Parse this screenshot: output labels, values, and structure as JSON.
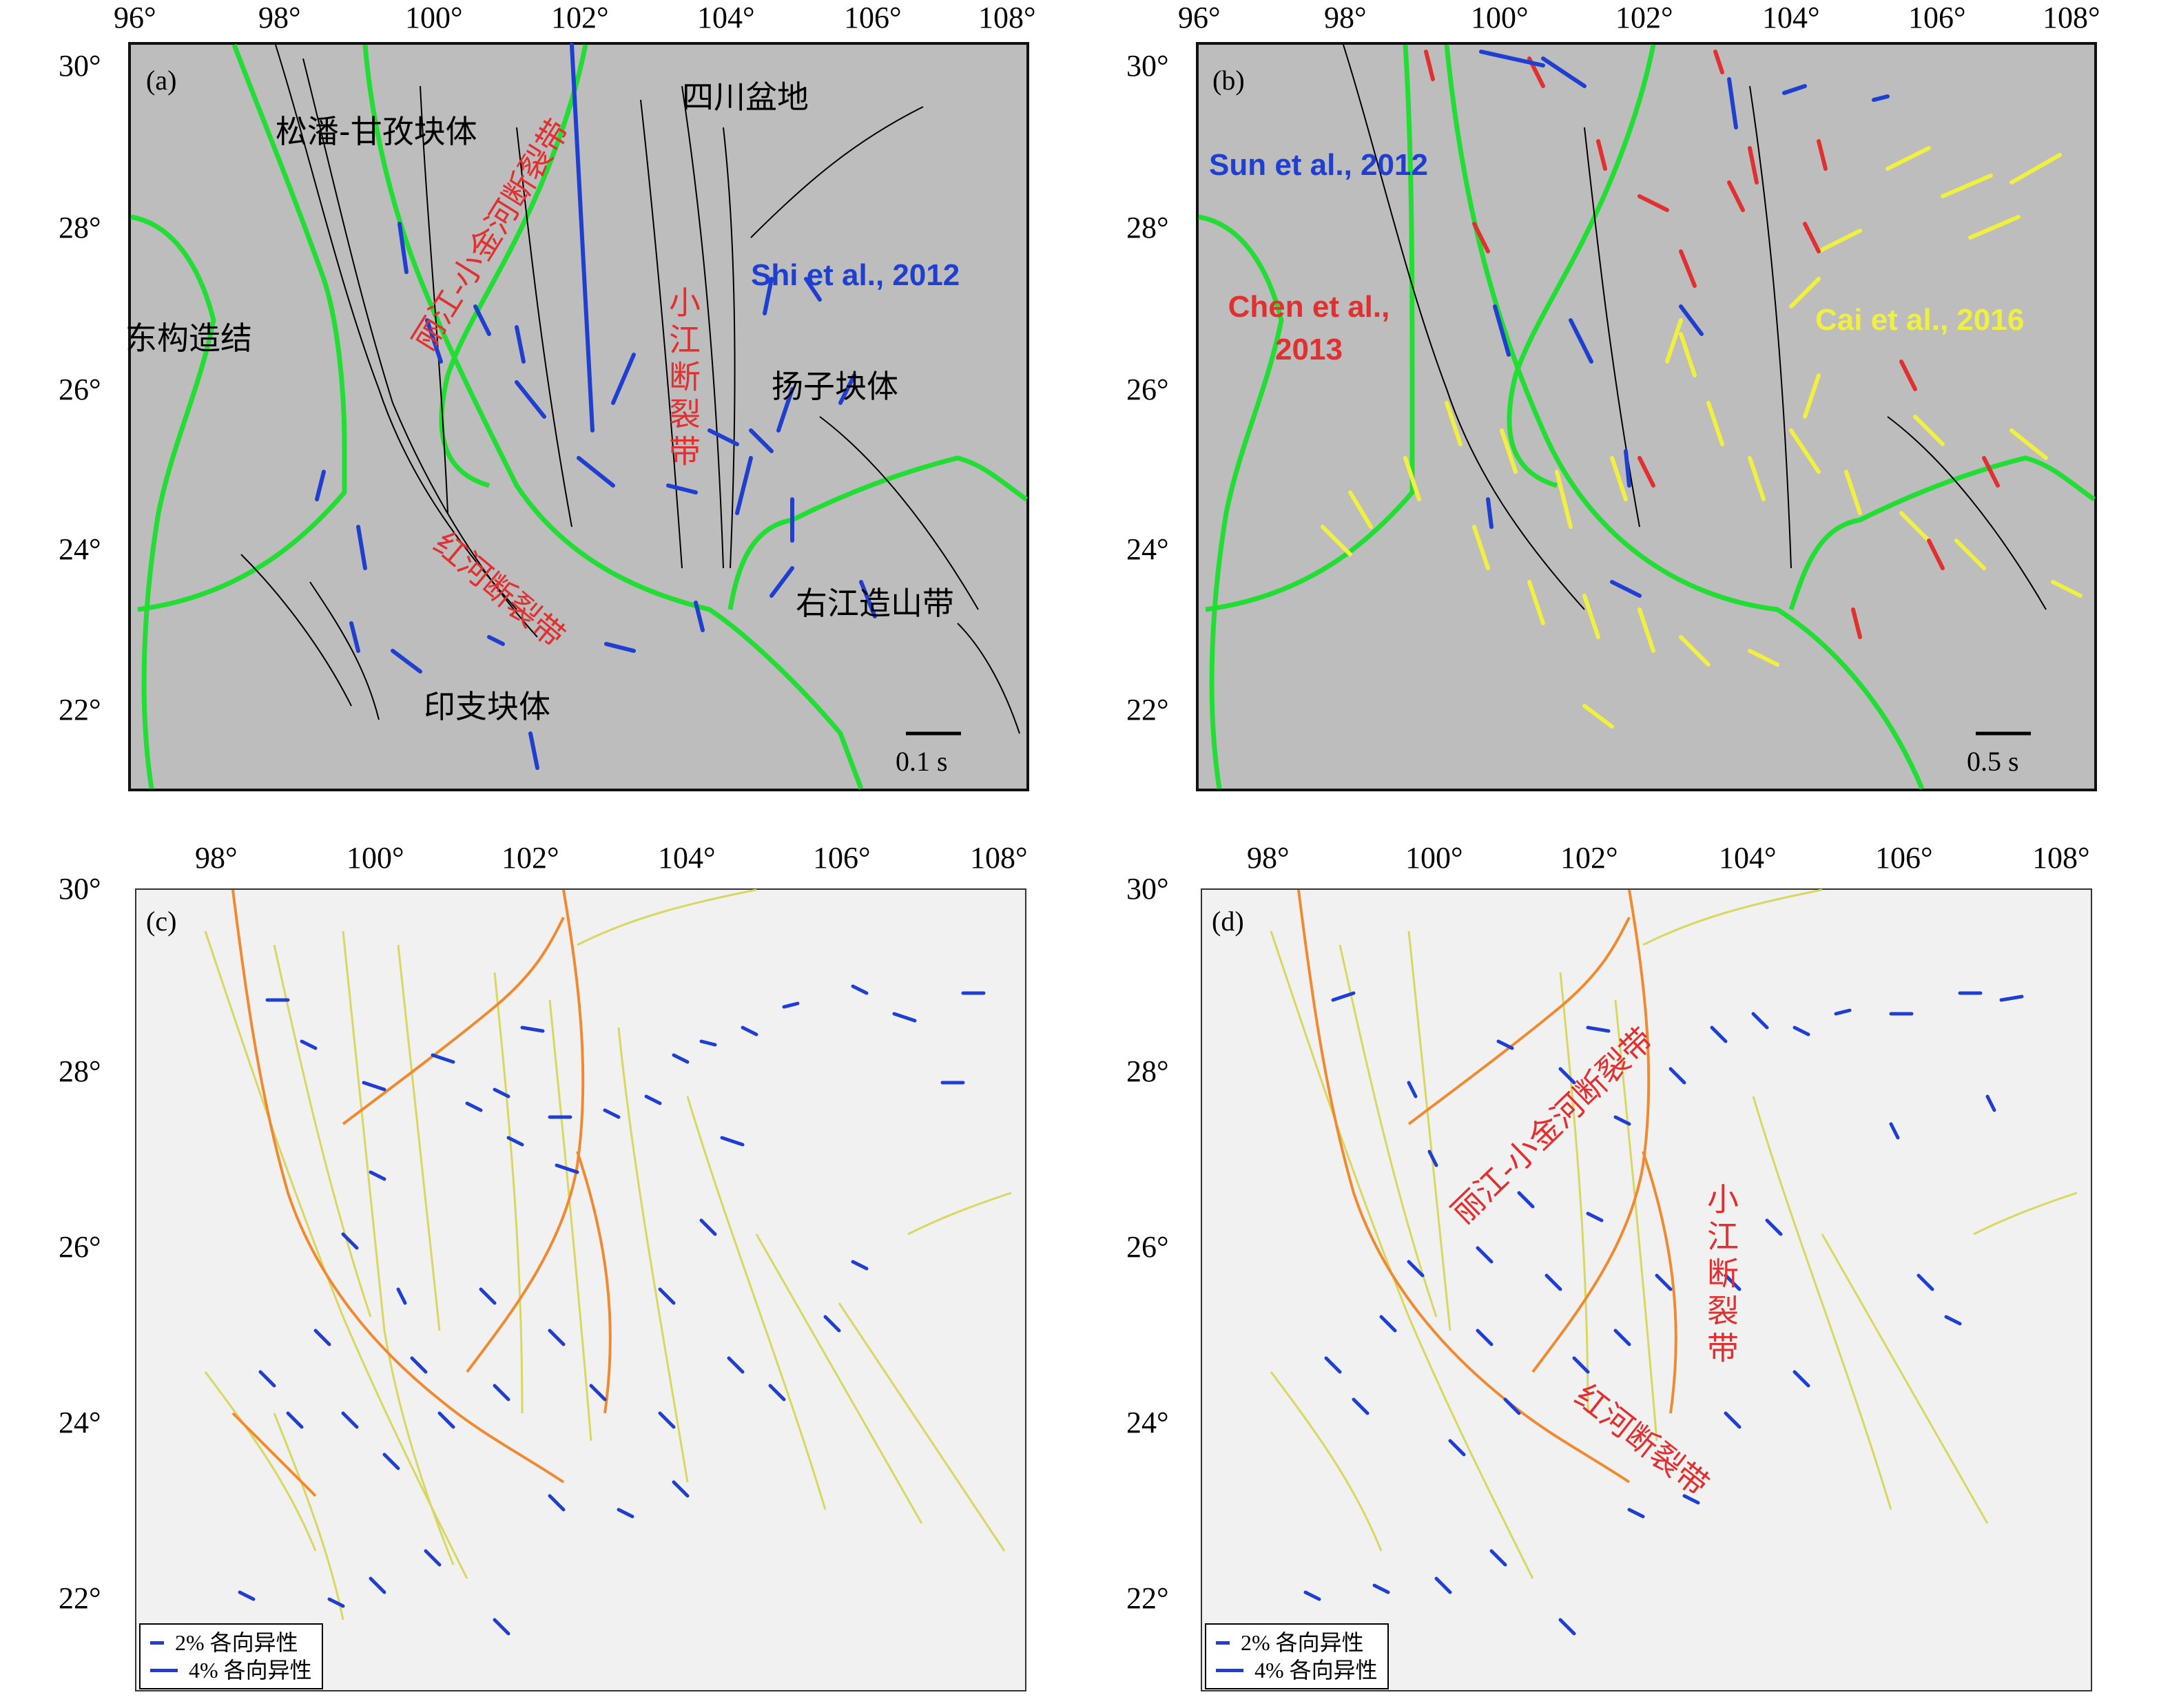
{
  "panels": {
    "a": {
      "tag": "(a)",
      "x_ticks": [
        "96°",
        "98°",
        "100°",
        "102°",
        "104°",
        "106°",
        "108°"
      ],
      "y_ticks": [
        "30°",
        "28°",
        "26°",
        "24°",
        "22°"
      ],
      "labels": {
        "songpan": "松潘-甘孜块体",
        "sichuan": "四川盆地",
        "donggou": "东构造结",
        "yangzi": "扬子块体",
        "youjiang": "右江造山带",
        "yinzhi": "印支块体",
        "lijiang": "丽江-小金河断裂带",
        "xiaojiang": "小江断裂带",
        "honghe": "红河断裂带",
        "source": "Shi et al., 2012"
      },
      "scale": "0.1 s"
    },
    "b": {
      "tag": "(b)",
      "x_ticks": [
        "96°",
        "98°",
        "100°",
        "102°",
        "104°",
        "106°",
        "108°"
      ],
      "y_ticks": [
        "30°",
        "28°",
        "26°",
        "24°",
        "22°"
      ],
      "labels": {
        "sun": "Sun et al., 2012",
        "chen": "Chen et al., 2013",
        "cai": "Cai et al., 2016"
      },
      "scale": "0.5 s"
    },
    "c": {
      "tag": "(c)",
      "x_ticks": [
        "98°",
        "100°",
        "102°",
        "104°",
        "106°",
        "108°"
      ],
      "y_ticks": [
        "30°",
        "28°",
        "26°",
        "24°",
        "22°"
      ],
      "legend": [
        "2% 各向异性",
        "4% 各向异性"
      ]
    },
    "d": {
      "tag": "(d)",
      "x_ticks": [
        "98°",
        "100°",
        "102°",
        "104°",
        "106°",
        "108°"
      ],
      "y_ticks": [
        "30°",
        "28°",
        "26°",
        "24°",
        "22°"
      ],
      "labels": {
        "lijiang": "丽江-小金河断裂带",
        "xiaojiang": "小江断裂带",
        "honghe": "红河断裂带"
      },
      "legend": [
        "2% 各向异性",
        "4% 各向异性"
      ]
    }
  },
  "colors": {
    "block_boundary": "#22dd33",
    "fault": "#000000",
    "fast_wave_blue": "#1f3fd0",
    "fast_wave_red": "#e03030",
    "fast_wave_yellow": "#f0f040",
    "fault_orange": "#f08a30",
    "fault_yellow": "#d8d860"
  }
}
